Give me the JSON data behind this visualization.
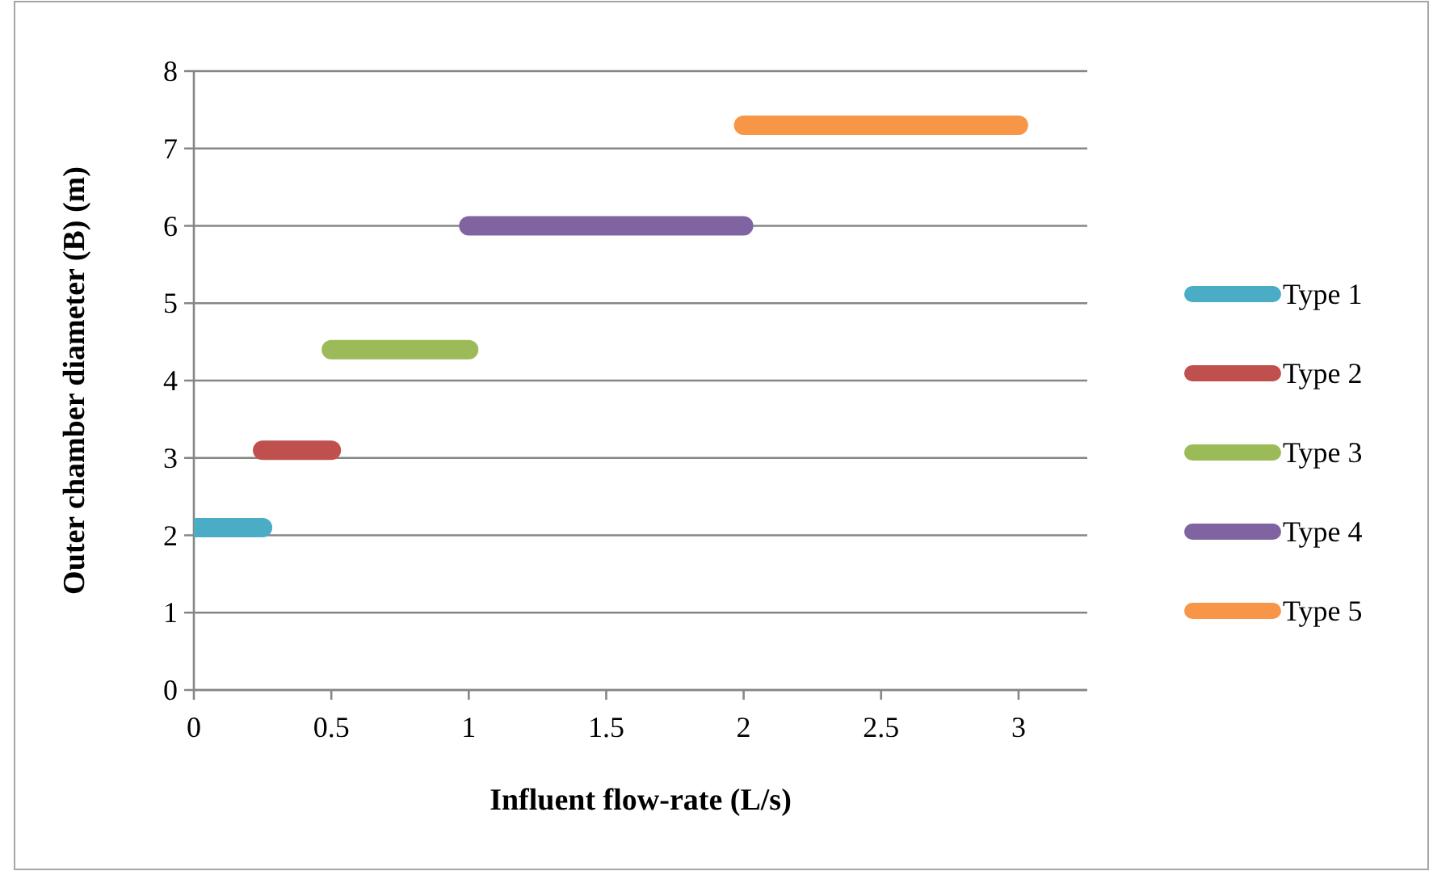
{
  "chart_data": {
    "type": "line",
    "xlabel": "Influent flow-rate (L/s)",
    "ylabel": "Outer chamber diameter (B) (m)",
    "xlim": [
      0,
      3.25
    ],
    "xticks": [
      0,
      0.5,
      1,
      1.5,
      2,
      2.5,
      3
    ],
    "ylim": [
      0,
      8
    ],
    "yticks": [
      0,
      1,
      2,
      3,
      4,
      5,
      6,
      7,
      8
    ],
    "grid": "y",
    "legend": "right",
    "marker": "none",
    "line_style": "solid",
    "series": [
      {
        "name": "Type 1",
        "color": "#4bacc6",
        "x": [
          0,
          0.25
        ],
        "values": [
          2.1,
          2.1
        ]
      },
      {
        "name": "Type 2",
        "color": "#c0504d",
        "x": [
          0.25,
          0.5
        ],
        "values": [
          3.1,
          3.1
        ]
      },
      {
        "name": "Type 3",
        "color": "#9bbb59",
        "x": [
          0.5,
          1
        ],
        "values": [
          4.4,
          4.4
        ]
      },
      {
        "name": "Type 4",
        "color": "#8064a2",
        "x": [
          1,
          2
        ],
        "values": [
          6,
          6
        ]
      },
      {
        "name": "Type 5",
        "color": "#f79646",
        "x": [
          2,
          3
        ],
        "values": [
          7.3,
          7.3
        ]
      }
    ]
  }
}
